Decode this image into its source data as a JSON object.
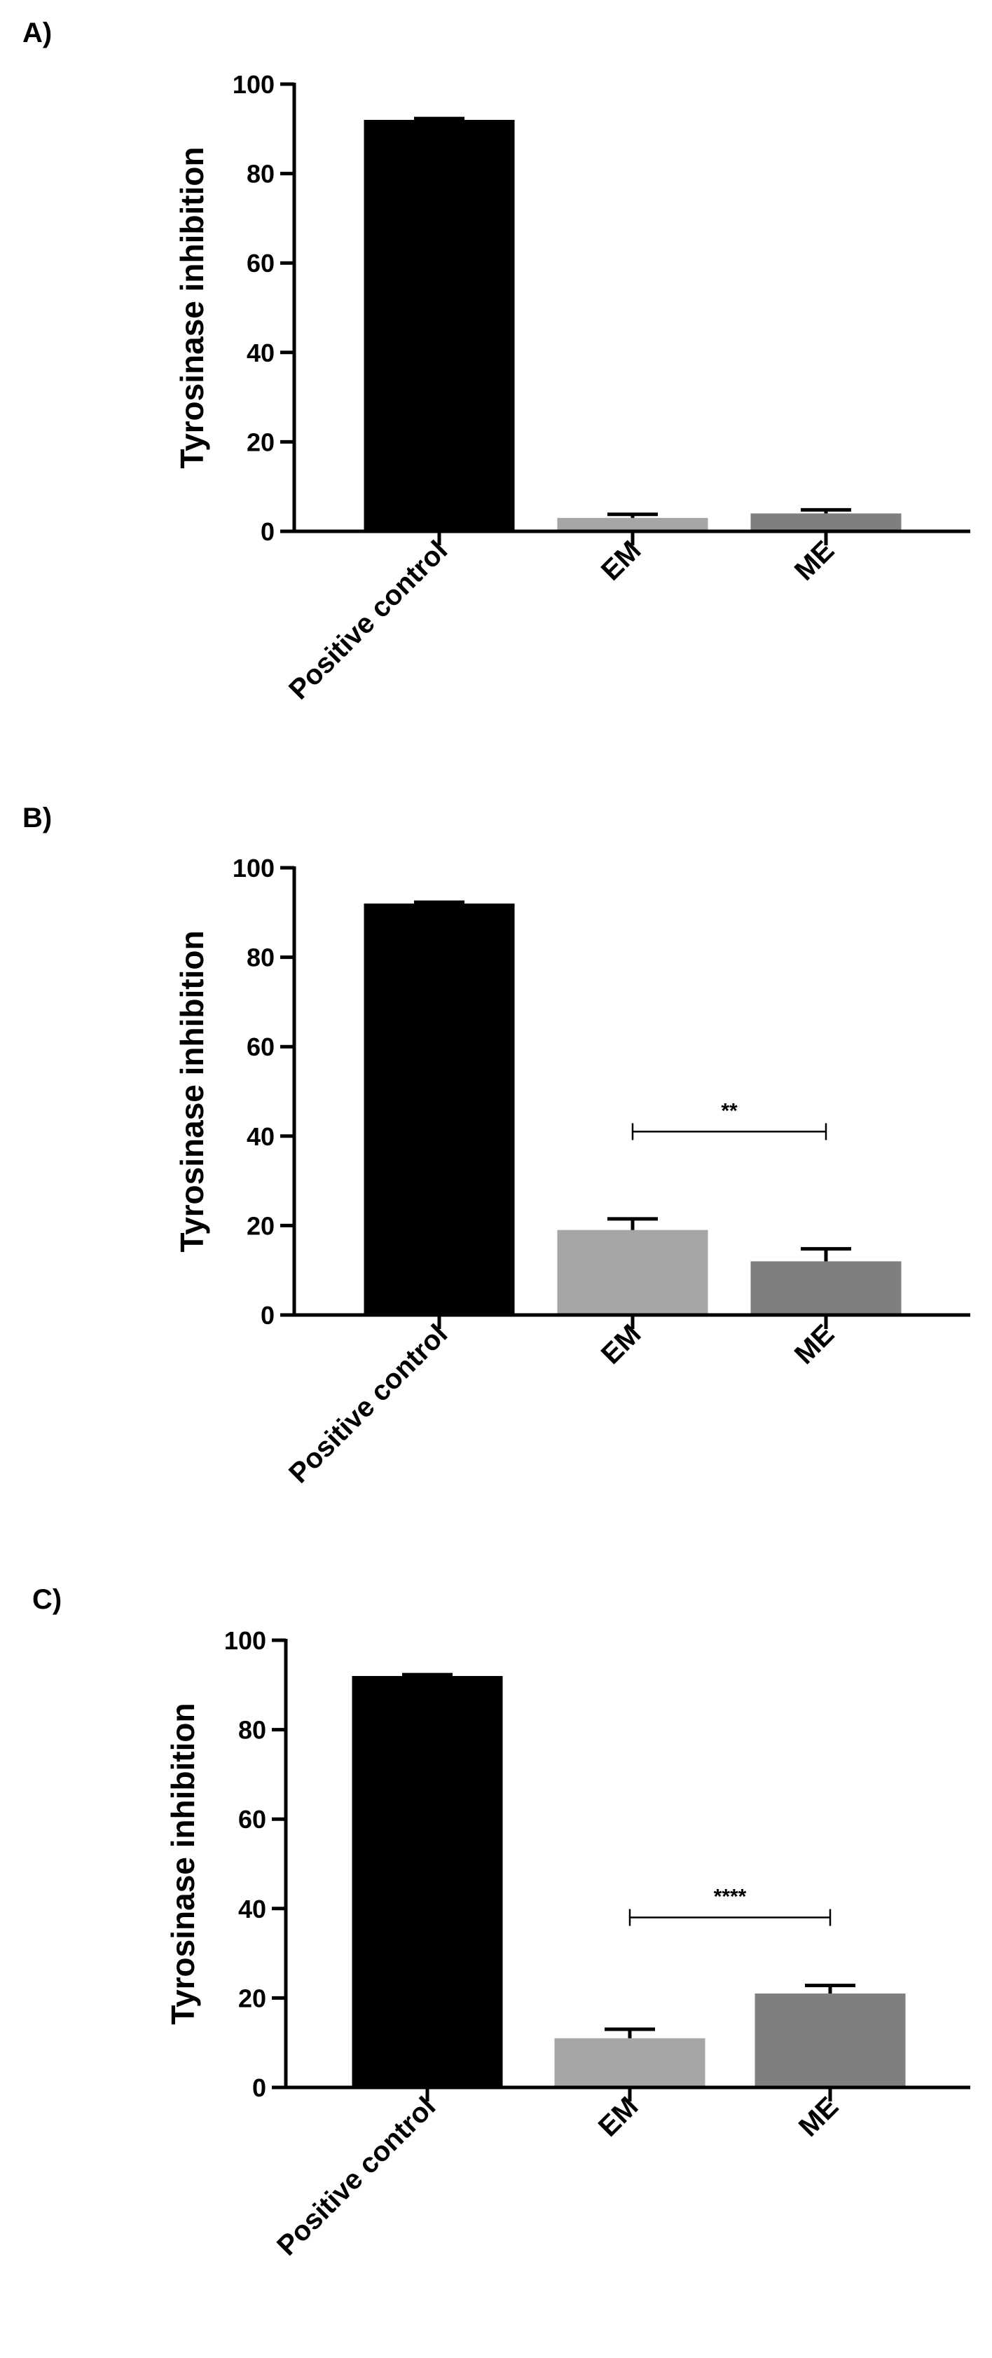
{
  "chart_data": [
    {
      "type": "bar",
      "panel_label": "A)",
      "ylabel": "Tyrosinase inhibition",
      "ylim": [
        0,
        100
      ],
      "yticks": [
        0,
        20,
        40,
        60,
        80,
        100
      ],
      "categories": [
        "Positive control",
        "EM",
        "ME"
      ],
      "values": [
        92,
        3,
        4
      ],
      "errors": [
        0.3,
        0.8,
        0.8
      ],
      "colors": [
        "#000000",
        "#a6a6a8",
        "#7f7f7f"
      ],
      "significance": null
    },
    {
      "type": "bar",
      "panel_label": "B)",
      "ylabel": "Tyrosinase inhibition",
      "ylim": [
        0,
        100
      ],
      "yticks": [
        0,
        20,
        40,
        60,
        80,
        100
      ],
      "categories": [
        "Positive control",
        "EM",
        "ME"
      ],
      "values": [
        92,
        19,
        12
      ],
      "errors": [
        0.3,
        2.5,
        2.8
      ],
      "colors": [
        "#000000",
        "#a6a6a8",
        "#7f7f7f"
      ],
      "significance": {
        "from": 1,
        "to": 2,
        "y": 41,
        "label": "**"
      }
    },
    {
      "type": "bar",
      "panel_label": "C)",
      "ylabel": "Tyrosinase inhibition",
      "ylim": [
        0,
        100
      ],
      "yticks": [
        0,
        20,
        40,
        60,
        80,
        100
      ],
      "categories": [
        "Positive control",
        "EM",
        "ME"
      ],
      "values": [
        92,
        11,
        21
      ],
      "errors": [
        0.3,
        2.0,
        1.8
      ],
      "colors": [
        "#000000",
        "#a6a6a8",
        "#7f7f7f"
      ],
      "significance": {
        "from": 1,
        "to": 2,
        "y": 38,
        "label": "****"
      }
    }
  ]
}
